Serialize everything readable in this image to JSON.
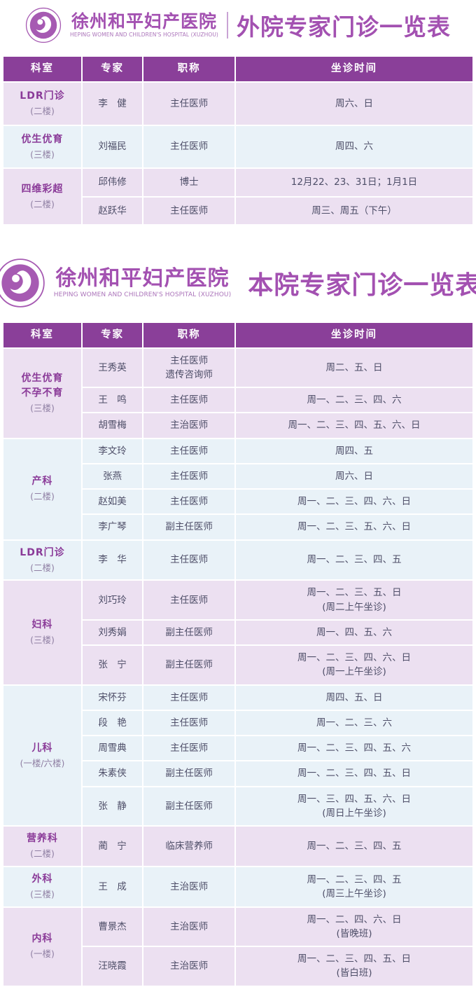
{
  "hospital": {
    "name": "徐州和平妇产医院",
    "name_en": "HEPING WOMEN AND CHILDREN'S HOSPITAL (XUZHOU)"
  },
  "colors": {
    "header_bg": "#8a3f99",
    "row_pink": "#ece0f1",
    "row_blue": "#e9f2f8",
    "accent": "#a351b1",
    "dept_color": "#8a3a98",
    "floor_color": "#8f7fa3",
    "body_text": "#4e4e68",
    "logo_purple": "#a65ab2"
  },
  "icons": {
    "logo": "mother-and-baby-circle-emblem"
  },
  "tables": [
    {
      "title": "外院专家门诊一览表",
      "columns": [
        "科室",
        "专家",
        "职称",
        "坐诊时间"
      ],
      "sections": [
        {
          "dept": "LDR门诊",
          "floor": "(二楼)",
          "tone": "pink",
          "rows": [
            {
              "name": "李　健",
              "title": "主任医师",
              "time": "周六、日"
            }
          ]
        },
        {
          "dept": "优生优育",
          "floor": "(三楼)",
          "tone": "blue",
          "rows": [
            {
              "name": "刘福民",
              "title": "主任医师",
              "time": "周四、六"
            }
          ]
        },
        {
          "dept": "四维彩超",
          "floor": "(二楼)",
          "tone": "pink",
          "rows": [
            {
              "name": "邱伟修",
              "title": "博士",
              "time": "12月22、23、31日；1月1日"
            },
            {
              "name": "赵跃华",
              "title": "主任医师",
              "time": "周三、周五（下午）"
            }
          ]
        }
      ]
    },
    {
      "title": "本院专家门诊一览表",
      "columns": [
        "科室",
        "专家",
        "职称",
        "坐诊时间"
      ],
      "sections": [
        {
          "dept": "优生优育\n不孕不育",
          "floor": "(三楼)",
          "tone": "pink",
          "rows": [
            {
              "name": "王秀英",
              "title": "主任医师\n遗传咨询师",
              "time": "周二、五、日"
            },
            {
              "name": "王　鸣",
              "title": "主任医师",
              "time": "周一、二、三、四、六"
            },
            {
              "name": "胡雪梅",
              "title": "主治医师",
              "time": "周一、二、三、四、五、六、日"
            }
          ]
        },
        {
          "dept": "产科",
          "floor": "(二楼)",
          "tone": "blue",
          "rows": [
            {
              "name": "李文玲",
              "title": "主任医师",
              "time": "周四、五"
            },
            {
              "name": "张燕",
              "title": "主任医师",
              "time": "周六、日"
            },
            {
              "name": "赵如美",
              "title": "主任医师",
              "time": "周一、二、三、四、六、日"
            },
            {
              "name": "李广琴",
              "title": "副主任医师",
              "time": "周一、二、三、五、六、日"
            }
          ]
        },
        {
          "dept": "LDR门诊",
          "floor": "(二楼)",
          "tone": "blue",
          "rows": [
            {
              "name": "李　华",
              "title": "主任医师",
              "time": "周一、二、三、四、五"
            }
          ]
        },
        {
          "dept": "妇科",
          "floor": "(三楼)",
          "tone": "pink",
          "rows": [
            {
              "name": "刘巧玲",
              "title": "主任医师",
              "time": "周一、二、三、五、日\n(周二上午坐诊)"
            },
            {
              "name": "刘秀娟",
              "title": "副主任医师",
              "time": "周一、四、五、六"
            },
            {
              "name": "张　宁",
              "title": "副主任医师",
              "time": "周一、二、三、四、六、日\n(周一上午坐诊)"
            }
          ]
        },
        {
          "dept": "儿科",
          "floor": "(一楼/六楼)",
          "tone": "blue",
          "rows": [
            {
              "name": "宋怀芬",
              "title": "主任医师",
              "time": "周四、五、日"
            },
            {
              "name": "段　艳",
              "title": "主任医师",
              "time": "周一、二、三、六"
            },
            {
              "name": "周雪典",
              "title": "主任医师",
              "time": "周一、二、三、四、五、六"
            },
            {
              "name": "朱素侠",
              "title": "副主任医师",
              "time": "周一、二、三、四、五、日"
            },
            {
              "name": "张　静",
              "title": "副主任医师",
              "time": "周一、三、四、五、六、日\n(周日上午坐诊)"
            }
          ]
        },
        {
          "dept": "营养科",
          "floor": "(二楼)",
          "tone": "pink",
          "rows": [
            {
              "name": "蔺　宁",
              "title": "临床营养师",
              "time": "周一、二、三、四、五"
            }
          ]
        },
        {
          "dept": "外科",
          "floor": "(三楼)",
          "tone": "blue",
          "rows": [
            {
              "name": "王　成",
              "title": "主治医师",
              "time": "周一、二、三、四、五\n(周三上午坐诊)"
            }
          ]
        },
        {
          "dept": "内科",
          "floor": "(一楼)",
          "tone": "pink",
          "rows": [
            {
              "name": "曹景杰",
              "title": "主治医师",
              "time": "周一、二、四、六、日\n(皆晚班)"
            },
            {
              "name": "汪晓霞",
              "title": "主治医师",
              "time": "周一、二、三、四、五、日\n(皆白班)"
            }
          ]
        }
      ]
    }
  ]
}
